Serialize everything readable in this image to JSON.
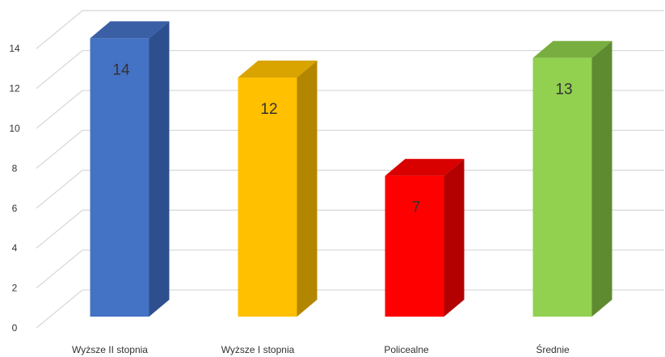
{
  "chart_data": {
    "type": "bar",
    "title": "",
    "xlabel": "",
    "ylabel": "",
    "categories": [
      "Wyższe II stopnia",
      "Wyższe I stopnia",
      "Policealne",
      "Średnie"
    ],
    "values": [
      14,
      12,
      7,
      13
    ],
    "ylim": [
      0,
      14
    ],
    "yticks": [
      "0",
      "2",
      "4",
      "6",
      "8",
      "10",
      "12",
      "14"
    ],
    "data_labels": [
      "14",
      "12",
      "7",
      "13"
    ],
    "grid": true,
    "legend": "none",
    "style": "3d-column",
    "colors": {
      "front": [
        "#4472C4",
        "#FFC000",
        "#FF0000",
        "#92D050"
      ],
      "side": [
        "#2E4F8E",
        "#B38600",
        "#B30000",
        "#5E8A30"
      ],
      "top": [
        "#3A5FA5",
        "#D9A300",
        "#D90000",
        "#78AE40"
      ],
      "grid": "#D9D9D9"
    }
  }
}
